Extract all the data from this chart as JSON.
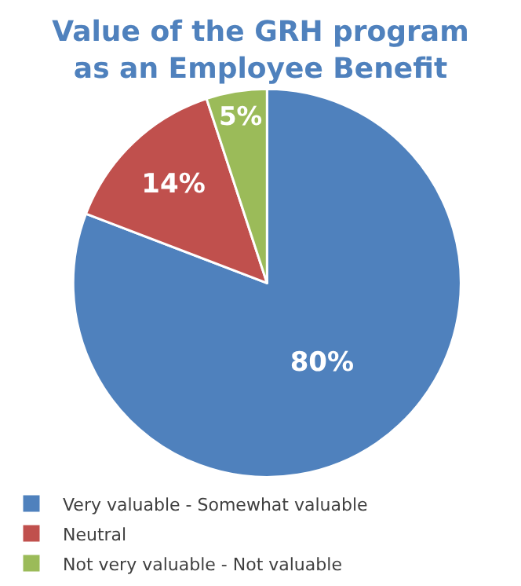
{
  "chart_data": {
    "type": "pie",
    "title": "Value of the GRH program\nas an Employee Benefit",
    "categories": [
      "Very valuable - Somewhat valuable",
      "Neutral",
      "Not very valuable - Not valuable"
    ],
    "values": [
      80,
      14,
      5
    ],
    "value_labels": [
      "80%",
      "14%",
      "5%"
    ],
    "colors": [
      "#4f81bd",
      "#c0504d",
      "#9bbb59"
    ],
    "legend": "bottom left"
  }
}
